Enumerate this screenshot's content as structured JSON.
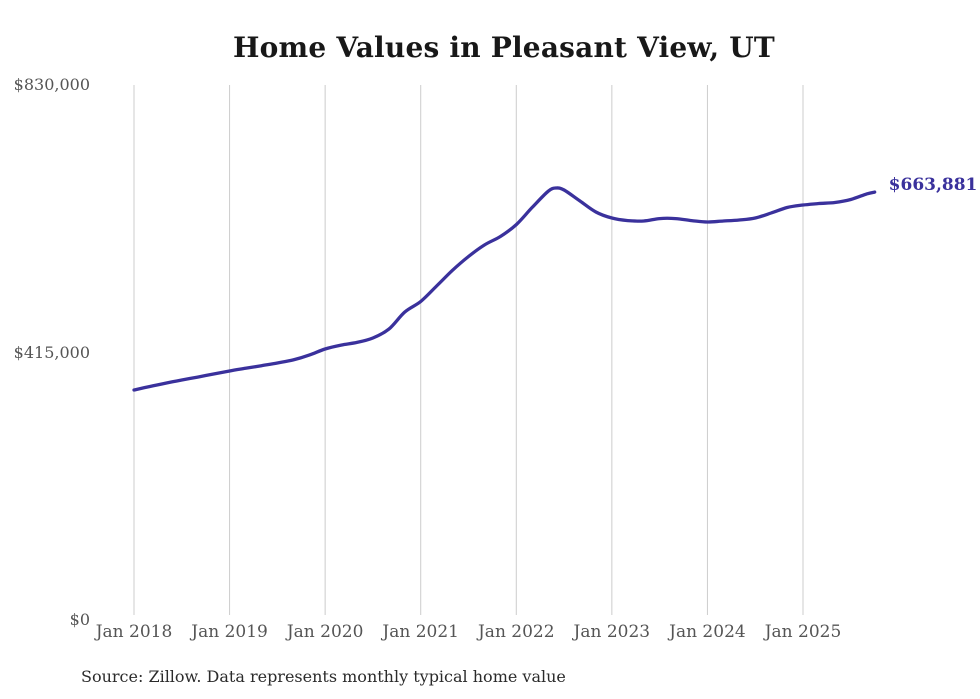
{
  "source_note": "Source: Zillow. Data represents monthly typical home value",
  "chart_data": {
    "type": "line",
    "title": "Home Values in Pleasant View, UT",
    "series_name": "Typical home value",
    "unit": "USD",
    "ylim": [
      0,
      830000
    ],
    "grid": "vertical-only",
    "legend": "none",
    "line_color": "#3a319c",
    "grid_color": "#cccccc",
    "axis_text_color": "#555555",
    "end_label": "$663,881",
    "end_value": 663881,
    "yticks": [
      {
        "value": 830000,
        "label": "$830,000"
      },
      {
        "value": 415000,
        "label": "$415,000"
      },
      {
        "value": 0,
        "label": "$0"
      }
    ],
    "xticks": [
      "Jan 2018",
      "Jan 2019",
      "Jan 2020",
      "Jan 2021",
      "Jan 2022",
      "Jan 2023",
      "Jan 2024",
      "Jan 2025"
    ],
    "points": [
      {
        "date": "2018-01",
        "value": 356800
      },
      {
        "date": "2018-03",
        "value": 362300
      },
      {
        "date": "2018-05",
        "value": 367500
      },
      {
        "date": "2018-07",
        "value": 372300
      },
      {
        "date": "2018-09",
        "value": 376900
      },
      {
        "date": "2018-11",
        "value": 381600
      },
      {
        "date": "2019-01",
        "value": 386300
      },
      {
        "date": "2019-03",
        "value": 390500
      },
      {
        "date": "2019-05",
        "value": 394500
      },
      {
        "date": "2019-07",
        "value": 398700
      },
      {
        "date": "2019-09",
        "value": 403500
      },
      {
        "date": "2019-11",
        "value": 410900
      },
      {
        "date": "2020-01",
        "value": 420400
      },
      {
        "date": "2020-03",
        "value": 426500
      },
      {
        "date": "2020-05",
        "value": 430600
      },
      {
        "date": "2020-07",
        "value": 437500
      },
      {
        "date": "2020-09",
        "value": 451300
      },
      {
        "date": "2020-11",
        "value": 477900
      },
      {
        "date": "2021-01",
        "value": 494100
      },
      {
        "date": "2021-03",
        "value": 518200
      },
      {
        "date": "2021-05",
        "value": 542700
      },
      {
        "date": "2021-07",
        "value": 563900
      },
      {
        "date": "2021-09",
        "value": 581800
      },
      {
        "date": "2021-11",
        "value": 595000
      },
      {
        "date": "2022-01",
        "value": 613500
      },
      {
        "date": "2022-03",
        "value": 640100
      },
      {
        "date": "2022-05",
        "value": 665100
      },
      {
        "date": "2022-06",
        "value": 670200
      },
      {
        "date": "2022-07",
        "value": 667100
      },
      {
        "date": "2022-09",
        "value": 650000
      },
      {
        "date": "2022-11",
        "value": 632900
      },
      {
        "date": "2023-01",
        "value": 623600
      },
      {
        "date": "2023-03",
        "value": 619700
      },
      {
        "date": "2023-05",
        "value": 619000
      },
      {
        "date": "2023-07",
        "value": 622800
      },
      {
        "date": "2023-09",
        "value": 622800
      },
      {
        "date": "2023-11",
        "value": 619700
      },
      {
        "date": "2024-01",
        "value": 617400
      },
      {
        "date": "2024-03",
        "value": 619000
      },
      {
        "date": "2024-05",
        "value": 620500
      },
      {
        "date": "2024-07",
        "value": 623600
      },
      {
        "date": "2024-09",
        "value": 631400
      },
      {
        "date": "2024-11",
        "value": 639900
      },
      {
        "date": "2025-01",
        "value": 643800
      },
      {
        "date": "2025-03",
        "value": 646100
      },
      {
        "date": "2025-05",
        "value": 647700
      },
      {
        "date": "2025-07",
        "value": 652400
      },
      {
        "date": "2025-09",
        "value": 661000
      },
      {
        "date": "2025-10",
        "value": 663881
      }
    ]
  }
}
